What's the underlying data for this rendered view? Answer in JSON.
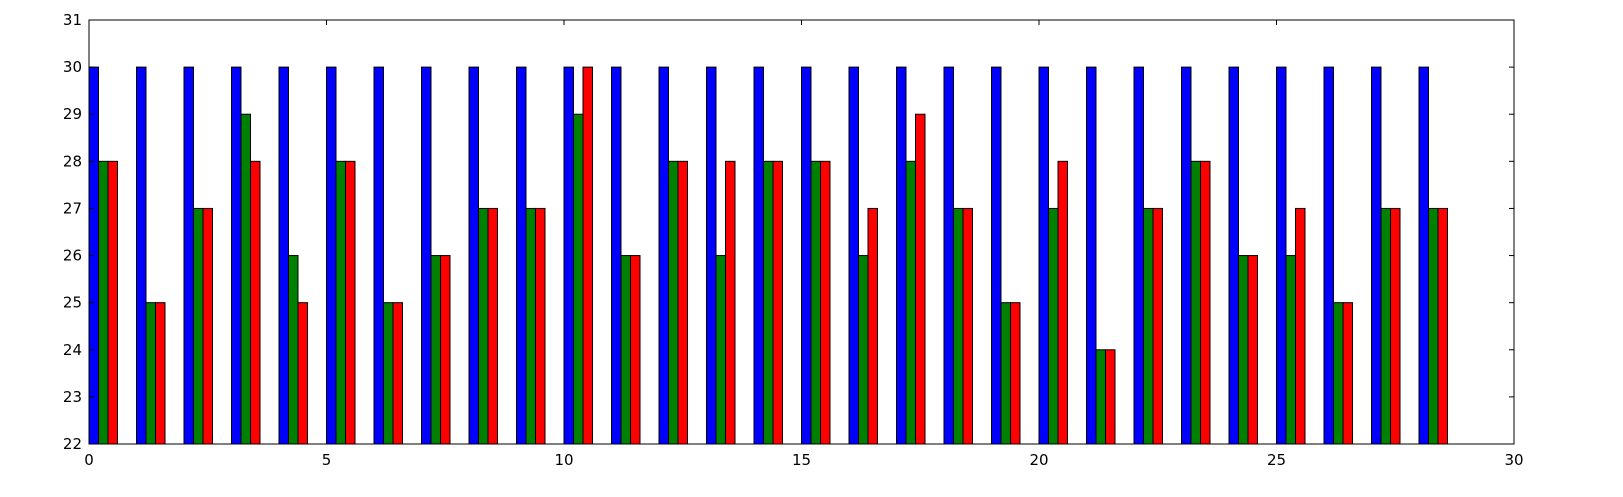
{
  "chart_data": {
    "type": "bar",
    "title": "",
    "xlabel": "",
    "ylabel": "",
    "xlim": [
      0,
      30
    ],
    "ylim": [
      22,
      31
    ],
    "x_ticks": [
      0,
      5,
      10,
      15,
      20,
      25,
      30
    ],
    "y_ticks": [
      22,
      23,
      24,
      25,
      26,
      27,
      28,
      29,
      30,
      31
    ],
    "x_tick_labels": [
      "0",
      "5",
      "10",
      "15",
      "20",
      "25",
      "30"
    ],
    "y_tick_labels": [
      "22",
      "23",
      "24",
      "25",
      "26",
      "27",
      "28",
      "29",
      "30",
      "31"
    ],
    "grid": false,
    "legend": "none",
    "x": [
      0,
      1,
      2,
      3,
      4,
      5,
      6,
      7,
      8,
      9,
      10,
      11,
      12,
      13,
      14,
      15,
      16,
      17,
      18,
      19,
      20,
      21,
      22,
      23,
      24,
      25,
      26,
      27,
      28
    ],
    "bar_width": 0.2,
    "series": [
      {
        "color": "#0000ff",
        "values": [
          30,
          30,
          30,
          30,
          30,
          30,
          30,
          30,
          30,
          30,
          30,
          30,
          30,
          30,
          30,
          30,
          30,
          30,
          30,
          30,
          30,
          30,
          30,
          30,
          30,
          30,
          30,
          30,
          30
        ]
      },
      {
        "color": "#008000",
        "values": [
          28,
          25,
          27,
          29,
          26,
          28,
          25,
          26,
          27,
          27,
          29,
          26,
          28,
          26,
          28,
          28,
          26,
          28,
          27,
          25,
          27,
          24,
          27,
          28,
          26,
          26,
          25,
          27,
          27
        ]
      },
      {
        "color": "#ff0000",
        "values": [
          28,
          25,
          27,
          28,
          25,
          28,
          25,
          26,
          27,
          27,
          30,
          26,
          28,
          28,
          28,
          28,
          27,
          29,
          27,
          25,
          28,
          24,
          27,
          28,
          26,
          27,
          25,
          27,
          27
        ]
      }
    ]
  }
}
